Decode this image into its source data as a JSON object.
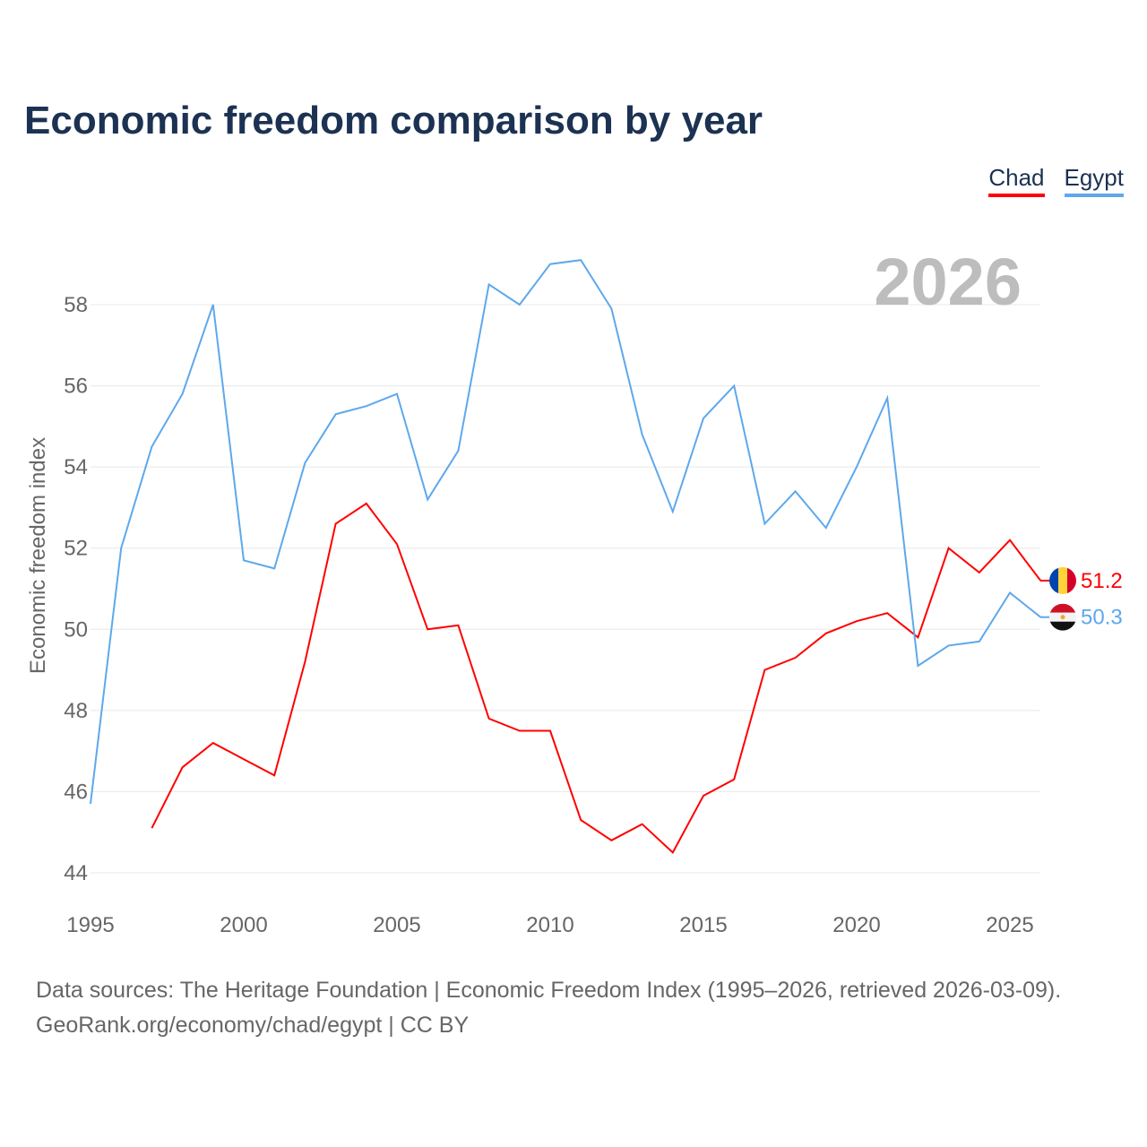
{
  "title": "Economic freedom comparison by year",
  "legend": [
    {
      "name": "Chad",
      "color": "#ff0000"
    },
    {
      "name": "Egypt",
      "color": "#5ea8ec"
    }
  ],
  "current_year_label": "2026",
  "source_line1": "Data sources: The Heritage Foundation | Economic Freedom Index (1995–2026, retrieved 2026-03-09).",
  "source_line2": "GeoRank.org/economy/chad/egypt | CC BY",
  "chart_data": {
    "type": "line",
    "title": "Economic freedom comparison by year",
    "xlabel": "",
    "ylabel": "Economic freedom index",
    "xlim": [
      1995,
      2026
    ],
    "ylim": [
      44,
      59.5
    ],
    "xticks": [
      1995,
      2000,
      2005,
      2010,
      2015,
      2020,
      2025
    ],
    "yticks": [
      44,
      46,
      48,
      50,
      52,
      54,
      56,
      58
    ],
    "grid": true,
    "legend_position": "top-right",
    "series": [
      {
        "name": "Chad",
        "color": "#ff0000",
        "end_label": "51.2",
        "x": [
          1997,
          1998,
          1999,
          2000,
          2001,
          2002,
          2003,
          2004,
          2005,
          2006,
          2007,
          2008,
          2009,
          2010,
          2011,
          2012,
          2013,
          2014,
          2015,
          2016,
          2017,
          2018,
          2019,
          2020,
          2021,
          2022,
          2023,
          2024,
          2025,
          2026
        ],
        "y": [
          45.1,
          46.6,
          47.2,
          46.8,
          46.4,
          49.2,
          52.6,
          53.1,
          52.1,
          50.0,
          50.1,
          47.8,
          47.5,
          47.5,
          45.3,
          44.8,
          45.2,
          44.5,
          45.9,
          46.3,
          49.0,
          49.3,
          49.9,
          50.2,
          50.4,
          49.8,
          52.0,
          51.4,
          52.2,
          51.2
        ]
      },
      {
        "name": "Egypt",
        "color": "#5ea8ec",
        "end_label": "50.3",
        "x": [
          1995,
          1996,
          1997,
          1998,
          1999,
          2000,
          2001,
          2002,
          2003,
          2004,
          2005,
          2006,
          2007,
          2008,
          2009,
          2010,
          2011,
          2012,
          2013,
          2014,
          2015,
          2016,
          2017,
          2018,
          2019,
          2020,
          2021,
          2022,
          2023,
          2024,
          2025,
          2026
        ],
        "y": [
          45.7,
          52.0,
          54.5,
          55.8,
          58.0,
          51.7,
          51.5,
          54.1,
          55.3,
          55.5,
          55.8,
          53.2,
          54.4,
          58.5,
          58.0,
          59.0,
          59.1,
          57.9,
          54.8,
          52.9,
          55.2,
          56.0,
          52.6,
          53.4,
          52.5,
          54.0,
          55.7,
          49.1,
          49.6,
          49.7,
          50.9,
          50.3
        ]
      }
    ]
  }
}
